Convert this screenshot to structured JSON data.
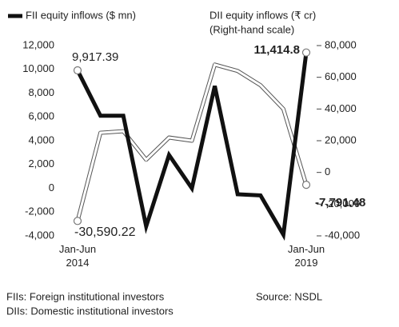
{
  "chart_data": {
    "type": "line",
    "categories": [
      "Jan-Jun 2014",
      null,
      null,
      null,
      null,
      null,
      null,
      null,
      null,
      null,
      "Jan-Jun 2019"
    ],
    "series": [
      {
        "name": "FII equity inflows ($ mn)",
        "color": "#111111",
        "axis": "y",
        "values": [
          9917.39,
          6100,
          6100,
          -3200,
          2800,
          0,
          8600,
          -500,
          -600,
          -3900,
          11414.8
        ],
        "value_labels": [
          "9,917.39",
          null,
          null,
          null,
          null,
          null,
          null,
          null,
          null,
          null,
          "11,414.8"
        ]
      },
      {
        "name": "DII equity inflows (₹ cr)",
        "color": "#ffffff",
        "axis": "y2",
        "values": [
          -30590.22,
          25000,
          26000,
          8000,
          22000,
          20000,
          68000,
          64000,
          55000,
          40000,
          -7791.48
        ],
        "value_labels": [
          "-30,590.22",
          null,
          null,
          null,
          null,
          null,
          null,
          null,
          null,
          null,
          "-7,791.48"
        ]
      }
    ],
    "y2_note": "(Right-hand scale)",
    "ylim": [
      -4000,
      12000
    ],
    "yticks": [
      {
        "value": -4000,
        "label": "-4,000"
      },
      {
        "value": -2000,
        "label": "-2,000"
      },
      0,
      {
        "value": 2000,
        "label": "2,000"
      },
      {
        "value": 4000,
        "label": "4,000"
      },
      {
        "value": 6000,
        "label": "6,000"
      },
      {
        "value": 8000,
        "label": "8,000"
      },
      {
        "value": 10000,
        "label": "10,000"
      },
      {
        "value": 12000,
        "label": "12,000"
      }
    ],
    "y2lim": [
      -40000,
      80000
    ],
    "y2ticks": [
      {
        "value": -40000,
        "label": "-40,000"
      },
      {
        "value": -20000,
        "label": "-20,000"
      },
      0,
      {
        "value": 20000,
        "label": "20,000"
      },
      {
        "value": 40000,
        "label": "40,000"
      },
      {
        "value": 60000,
        "label": "60,000"
      },
      {
        "value": 80000,
        "label": "80,000"
      }
    ],
    "footnotes": [
      "FIIs: Foreign institutional investors",
      "DIIs: Domestic institutional investors"
    ],
    "source": "Source: NSDL"
  }
}
